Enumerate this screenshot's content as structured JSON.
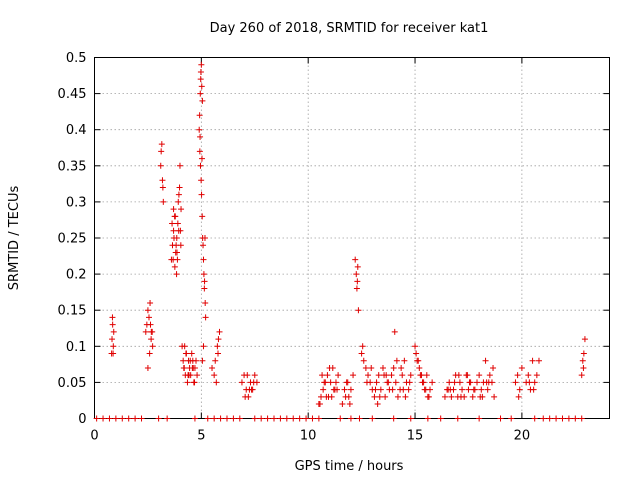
{
  "chart_data": {
    "type": "scatter",
    "title": "Day 260 of 2018, SRMTID for receiver kat1",
    "xlabel": "GPS time / hours",
    "ylabel": "SRMTID / TECUs",
    "xlim": [
      0,
      24.1
    ],
    "ylim": [
      0,
      0.5
    ],
    "x_ticks": [
      0,
      5,
      10,
      15,
      20
    ],
    "x_tick_labels": [
      "0",
      "5",
      "10",
      "15",
      "20"
    ],
    "y_ticks": [
      0,
      0.05,
      0.1,
      0.15,
      0.2,
      0.25,
      0.3,
      0.35,
      0.4,
      0.45,
      0.5
    ],
    "y_tick_labels": [
      "0",
      "0.05",
      "0.1",
      "0.15",
      "0.2",
      "0.25",
      "0.3",
      "0.35",
      "0.4",
      "0.45",
      "0.5"
    ],
    "grid": true,
    "marker": "+",
    "marker_color": "#e00000",
    "series": [
      {
        "name": "kat1",
        "x": [
          0.8,
          0.82,
          0.85,
          0.88,
          0.9,
          0.84,
          0.87,
          2.4,
          2.45,
          2.5,
          2.55,
          2.6,
          2.62,
          2.65,
          2.7,
          2.72,
          2.5,
          2.58,
          2.66,
          3.1,
          3.12,
          3.15,
          3.18,
          3.2,
          3.22,
          3.6,
          3.65,
          3.7,
          3.75,
          3.8,
          3.85,
          3.9,
          3.95,
          4.0,
          4.05,
          3.68,
          3.72,
          3.78,
          3.82,
          3.88,
          3.92,
          3.98,
          4.02,
          3.63,
          3.76,
          3.86,
          3.94,
          4.04,
          3.7,
          3.84,
          4.1,
          4.15,
          4.2,
          4.25,
          4.3,
          4.35,
          4.4,
          4.45,
          4.5,
          4.55,
          4.6,
          4.65,
          4.7,
          4.75,
          4.8,
          4.18,
          4.28,
          4.38,
          4.48,
          4.58,
          4.68,
          4.22,
          4.42,
          4.62,
          4.9,
          4.92,
          4.95,
          4.97,
          5.0,
          5.02,
          5.05,
          4.93,
          4.96,
          4.99,
          5.01,
          5.04,
          4.94,
          4.98,
          5.03,
          5.06,
          5.08,
          5.1,
          5.12,
          5.15,
          5.18,
          5.2,
          5.14,
          5.17,
          5.1,
          5.05,
          5.5,
          5.6,
          5.7,
          5.75,
          5.8,
          5.85,
          5.65,
          5.78,
          6.9,
          7.0,
          7.1,
          7.2,
          7.3,
          7.4,
          7.5,
          7.6,
          7.05,
          7.25,
          7.45,
          7.15,
          7.35,
          10.5,
          10.6,
          10.7,
          10.8,
          10.9,
          11.0,
          11.1,
          11.2,
          11.3,
          11.4,
          10.55,
          10.75,
          10.95,
          11.15,
          11.35,
          10.65,
          10.85,
          11.05,
          11.25,
          11.6,
          11.7,
          11.8,
          11.9,
          12.0,
          12.1,
          11.75,
          11.95,
          11.85,
          12.2,
          12.25,
          12.3,
          12.35,
          12.28,
          12.32,
          12.5,
          12.6,
          12.7,
          12.8,
          12.9,
          13.0,
          13.1,
          13.2,
          13.3,
          13.4,
          13.5,
          13.6,
          13.7,
          13.8,
          13.9,
          14.0,
          14.1,
          14.2,
          14.3,
          14.4,
          14.5,
          14.6,
          14.7,
          14.8,
          12.55,
          12.75,
          12.95,
          13.15,
          13.35,
          13.55,
          13.75,
          13.95,
          14.15,
          14.35,
          14.55,
          14.75,
          13.25,
          13.65,
          14.05,
          14.45,
          15.0,
          15.1,
          15.2,
          15.3,
          15.4,
          15.5,
          15.6,
          15.7,
          15.8,
          15.05,
          15.25,
          15.45,
          15.65,
          15.15,
          15.35,
          15.55,
          16.4,
          16.5,
          16.6,
          16.7,
          16.8,
          16.9,
          17.0,
          17.1,
          17.2,
          17.3,
          17.4,
          17.5,
          17.6,
          17.7,
          17.8,
          17.9,
          18.0,
          18.1,
          18.2,
          18.3,
          18.4,
          18.5,
          18.6,
          18.7,
          16.55,
          16.85,
          17.15,
          17.45,
          17.75,
          18.05,
          18.35,
          18.65,
          16.65,
          17.05,
          17.55,
          18.15,
          18.45,
          19.7,
          19.8,
          19.9,
          20.0,
          20.2,
          20.3,
          20.4,
          20.5,
          20.6,
          20.7,
          20.8,
          19.85,
          20.35,
          20.55,
          22.8,
          22.85,
          22.9,
          22.95,
          22.88,
          0.1,
          0.4,
          0.7,
          1.0,
          1.3,
          1.6,
          1.9,
          2.2,
          3.0,
          3.4,
          4.7,
          5.3,
          5.6,
          5.9,
          6.2,
          6.5,
          6.8,
          7.5,
          7.8,
          8.1,
          8.4,
          8.7,
          9.0,
          9.3,
          9.6,
          9.9,
          10.2,
          10.5,
          11.5,
          12.0,
          12.4,
          13.0,
          14.0,
          14.8,
          15.6,
          16.2,
          17.0,
          18.0,
          19.0,
          19.5,
          20.6,
          21.0,
          21.3,
          21.6,
          21.9,
          22.2,
          22.5,
          22.8
        ],
        "y": [
          0.09,
          0.11,
          0.13,
          0.1,
          0.12,
          0.14,
          0.09,
          0.12,
          0.13,
          0.15,
          0.14,
          0.16,
          0.13,
          0.11,
          0.12,
          0.1,
          0.07,
          0.09,
          0.12,
          0.35,
          0.37,
          0.38,
          0.33,
          0.32,
          0.3,
          0.22,
          0.24,
          0.26,
          0.28,
          0.23,
          0.25,
          0.27,
          0.31,
          0.35,
          0.29,
          0.22,
          0.25,
          0.28,
          0.24,
          0.22,
          0.3,
          0.32,
          0.26,
          0.27,
          0.21,
          0.23,
          0.26,
          0.24,
          0.29,
          0.2,
          0.1,
          0.08,
          0.07,
          0.06,
          0.09,
          0.05,
          0.08,
          0.07,
          0.06,
          0.09,
          0.08,
          0.05,
          0.07,
          0.08,
          0.06,
          0.07,
          0.09,
          0.06,
          0.08,
          0.07,
          0.05,
          0.1,
          0.06,
          0.07,
          0.4,
          0.42,
          0.45,
          0.47,
          0.49,
          0.46,
          0.44,
          0.37,
          0.35,
          0.33,
          0.31,
          0.28,
          0.39,
          0.48,
          0.36,
          0.25,
          0.24,
          0.22,
          0.2,
          0.19,
          0.16,
          0.14,
          0.18,
          0.25,
          0.1,
          0.08,
          0.07,
          0.06,
          0.05,
          0.1,
          0.11,
          0.12,
          0.08,
          0.09,
          0.05,
          0.06,
          0.04,
          0.03,
          0.05,
          0.04,
          0.06,
          0.05,
          0.03,
          0.04,
          0.05,
          0.06,
          0.04,
          0.02,
          0.03,
          0.04,
          0.05,
          0.06,
          0.07,
          0.03,
          0.04,
          0.05,
          0.06,
          0.02,
          0.05,
          0.03,
          0.07,
          0.04,
          0.06,
          0.03,
          0.05,
          0.04,
          0.02,
          0.04,
          0.05,
          0.03,
          0.04,
          0.06,
          0.03,
          0.02,
          0.05,
          0.22,
          0.2,
          0.19,
          0.15,
          0.18,
          0.21,
          0.09,
          0.08,
          0.07,
          0.06,
          0.05,
          0.04,
          0.03,
          0.05,
          0.06,
          0.04,
          0.07,
          0.03,
          0.05,
          0.04,
          0.06,
          0.07,
          0.05,
          0.03,
          0.04,
          0.06,
          0.08,
          0.05,
          0.04,
          0.06,
          0.1,
          0.05,
          0.07,
          0.04,
          0.03,
          0.06,
          0.05,
          0.04,
          0.08,
          0.07,
          0.03,
          0.05,
          0.02,
          0.06,
          0.12,
          0.04,
          0.1,
          0.08,
          0.07,
          0.06,
          0.05,
          0.04,
          0.03,
          0.04,
          0.05,
          0.09,
          0.06,
          0.04,
          0.03,
          0.08,
          0.05,
          0.06,
          0.03,
          0.04,
          0.05,
          0.03,
          0.04,
          0.06,
          0.03,
          0.05,
          0.04,
          0.03,
          0.06,
          0.04,
          0.05,
          0.03,
          0.04,
          0.05,
          0.06,
          0.04,
          0.05,
          0.08,
          0.04,
          0.06,
          0.05,
          0.03,
          0.04,
          0.05,
          0.03,
          0.06,
          0.04,
          0.03,
          0.05,
          0.07,
          0.04,
          0.06,
          0.05,
          0.03,
          0.05,
          0.05,
          0.06,
          0.04,
          0.07,
          0.05,
          0.06,
          0.04,
          0.08,
          0.05,
          0.06,
          0.08,
          0.03,
          0.05,
          0.04,
          0.06,
          0.08,
          0.09,
          0.11,
          0.07,
          0,
          0,
          0,
          0,
          0,
          0,
          0,
          0,
          0,
          0,
          0,
          0,
          0,
          0,
          0,
          0,
          0,
          0,
          0,
          0,
          0,
          0,
          0,
          0,
          0,
          0,
          0,
          0,
          0,
          0,
          0,
          0,
          0,
          0,
          0,
          0,
          0,
          0,
          0,
          0,
          0,
          0,
          0,
          0,
          0,
          0,
          0,
          0
        ]
      }
    ]
  }
}
